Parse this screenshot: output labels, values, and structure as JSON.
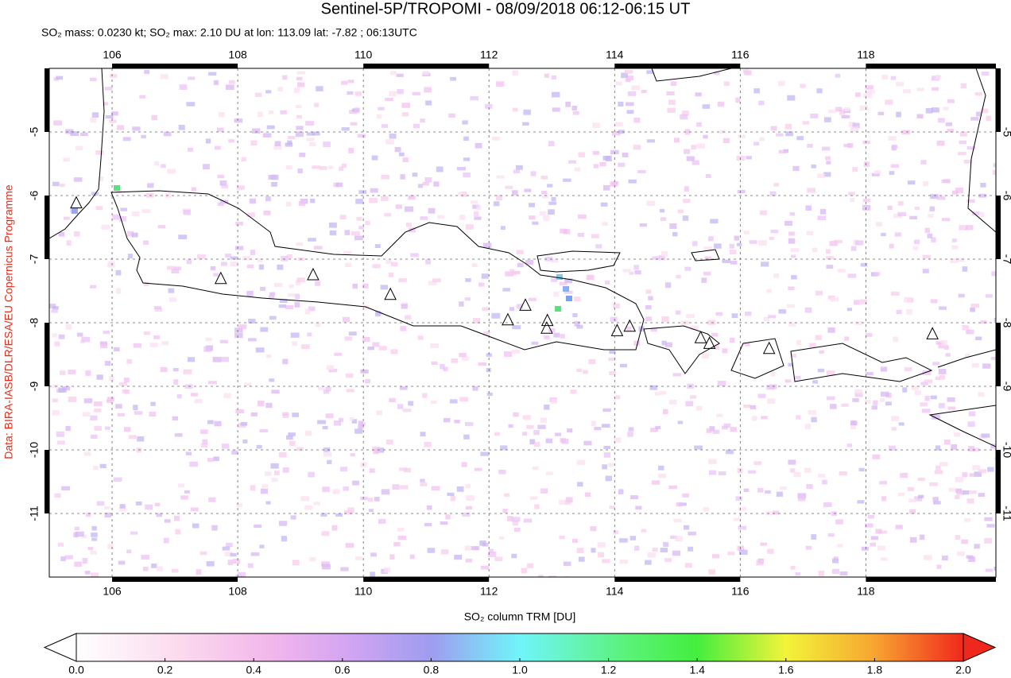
{
  "chart_data": {
    "type": "map",
    "title": "Sentinel-5P/TROPOMI - 08/09/2018 06:12-06:15 UT",
    "subtitle": "SO₂ mass: 0.0230 kt; SO₂ max: 2.10 DU at lon: 113.09 lat: -7.82 ; 06:13UTC",
    "credit": "Data: BIRA-IASB/DLR/ESA/EU Copernicus Programme",
    "xlim": [
      105,
      120.07
    ],
    "ylim": [
      -12,
      -4
    ],
    "xticks": [
      106,
      108,
      110,
      112,
      114,
      116,
      118
    ],
    "yticks": [
      -5,
      -6,
      -7,
      -8,
      -9,
      -10,
      -11
    ],
    "grid": true,
    "volcanoes": [
      {
        "lon": 105.43,
        "lat": -6.12
      },
      {
        "lon": 107.73,
        "lat": -7.31
      },
      {
        "lon": 109.2,
        "lat": -7.25
      },
      {
        "lon": 110.43,
        "lat": -7.56
      },
      {
        "lon": 112.3,
        "lat": -7.96
      },
      {
        "lon": 112.58,
        "lat": -7.73
      },
      {
        "lon": 112.93,
        "lat": -7.97
      },
      {
        "lon": 112.92,
        "lat": -8.09
      },
      {
        "lon": 114.04,
        "lat": -8.13
      },
      {
        "lon": 114.24,
        "lat": -8.06
      },
      {
        "lon": 115.37,
        "lat": -8.24
      },
      {
        "lon": 115.51,
        "lat": -8.33
      },
      {
        "lon": 116.46,
        "lat": -8.41
      },
      {
        "lon": 119.06,
        "lat": -8.18
      }
    ],
    "colorbar": {
      "label": "SO₂ column TRM [DU]",
      "lim": [
        0,
        2
      ],
      "ticks": [
        {
          "value": 0,
          "label": "0.0"
        },
        0.2,
        0.4,
        0.6,
        0.8,
        {
          "value": 1,
          "label": "1.0"
        },
        1.2,
        1.4,
        1.6,
        1.8,
        {
          "value": 2,
          "label": "2.0"
        }
      ]
    }
  }
}
